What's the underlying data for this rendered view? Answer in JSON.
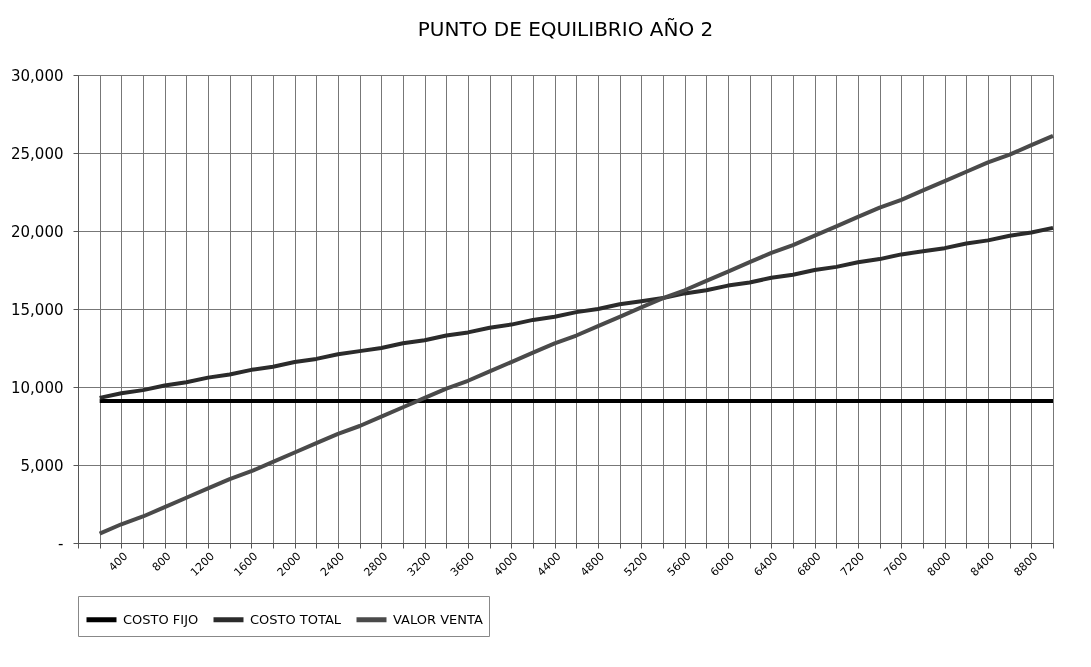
{
  "chart_data": {
    "type": "line",
    "title": "PUNTO DE EQUILIBRIO AÑO 2",
    "x": [
      200,
      400,
      600,
      800,
      1000,
      1200,
      1400,
      1600,
      1800,
      2000,
      2200,
      2400,
      2600,
      2800,
      3000,
      3200,
      3400,
      3600,
      3800,
      4000,
      4200,
      4400,
      4600,
      4800,
      5000,
      5200,
      5400,
      5600,
      5800,
      6000,
      6200,
      6400,
      6600,
      6800,
      7000,
      7200,
      7400,
      7600,
      7800,
      8000,
      8200,
      8400,
      8600,
      8800,
      9000
    ],
    "series": [
      {
        "name": "COSTO FIJO",
        "color": "#000000",
        "values": [
          9100,
          9100,
          9100,
          9100,
          9100,
          9100,
          9100,
          9100,
          9100,
          9100,
          9100,
          9100,
          9100,
          9100,
          9100,
          9100,
          9100,
          9100,
          9100,
          9100,
          9100,
          9100,
          9100,
          9100,
          9100,
          9100,
          9100,
          9100,
          9100,
          9100,
          9100,
          9100,
          9100,
          9100,
          9100,
          9100,
          9100,
          9100,
          9100,
          9100,
          9100,
          9100,
          9100,
          9100,
          9100
        ]
      },
      {
        "name": "COSTO TOTAL",
        "color": "#2b2b2b",
        "values": [
          9300,
          9600,
          9800,
          10100,
          10300,
          10600,
          10800,
          11100,
          11300,
          11600,
          11800,
          12100,
          12300,
          12500,
          12800,
          13000,
          13300,
          13500,
          13800,
          14000,
          14300,
          14500,
          14800,
          15000,
          15300,
          15500,
          15700,
          16000,
          16200,
          16500,
          16700,
          17000,
          17200,
          17500,
          17700,
          18000,
          18200,
          18500,
          18700,
          18900,
          19200,
          19400,
          19700,
          19900,
          20200
        ]
      },
      {
        "name": "VALOR VENTA",
        "color": "#4a4a4a",
        "values": [
          600,
          1200,
          1700,
          2300,
          2900,
          3500,
          4100,
          4600,
          5200,
          5800,
          6400,
          7000,
          7500,
          8100,
          8700,
          9300,
          9900,
          10400,
          11000,
          11600,
          12200,
          12800,
          13300,
          13900,
          14500,
          15100,
          15700,
          16200,
          16800,
          17400,
          18000,
          18600,
          19100,
          19700,
          20300,
          20900,
          21500,
          22000,
          22600,
          23200,
          23800,
          24400,
          24900,
          25500,
          26100
        ]
      }
    ],
    "xlim": [
      0,
      9000
    ],
    "xticks": [
      {
        "value": 0,
        "label": null
      },
      {
        "value": 200,
        "label": null
      },
      400,
      {
        "value": 600,
        "label": null
      },
      800,
      {
        "value": 1000,
        "label": null
      },
      1200,
      {
        "value": 1400,
        "label": null
      },
      1600,
      {
        "value": 1800,
        "label": null
      },
      2000,
      {
        "value": 2200,
        "label": null
      },
      2400,
      {
        "value": 2600,
        "label": null
      },
      2800,
      {
        "value": 3000,
        "label": null
      },
      3200,
      {
        "value": 3400,
        "label": null
      },
      3600,
      {
        "value": 3800,
        "label": null
      },
      4000,
      {
        "value": 4200,
        "label": null
      },
      4400,
      {
        "value": 4600,
        "label": null
      },
      4800,
      {
        "value": 5000,
        "label": null
      },
      5200,
      {
        "value": 5400,
        "label": null
      },
      5600,
      {
        "value": 5800,
        "label": null
      },
      6000,
      {
        "value": 6200,
        "label": null
      },
      6400,
      {
        "value": 6600,
        "label": null
      },
      6800,
      {
        "value": 7000,
        "label": null
      },
      7200,
      {
        "value": 7400,
        "label": null
      },
      7600,
      {
        "value": 7800,
        "label": null
      },
      8000,
      {
        "value": 8200,
        "label": null
      },
      8400,
      {
        "value": 8600,
        "label": null
      },
      8800,
      {
        "value": 9000,
        "label": null
      }
    ],
    "ylim": [
      0,
      30000
    ],
    "yticks": [
      {
        "value": 0,
        "label": "-"
      },
      {
        "value": 5000,
        "label": "5,000"
      },
      {
        "value": 10000,
        "label": "10,000"
      },
      {
        "value": 15000,
        "label": "15,000"
      },
      {
        "value": 20000,
        "label": "20,000"
      },
      {
        "value": 25000,
        "label": "25,000"
      },
      {
        "value": 30000,
        "label": "30,000"
      }
    ],
    "grid": true,
    "legend": "bottom",
    "marker": "none",
    "line_style": "solid"
  }
}
